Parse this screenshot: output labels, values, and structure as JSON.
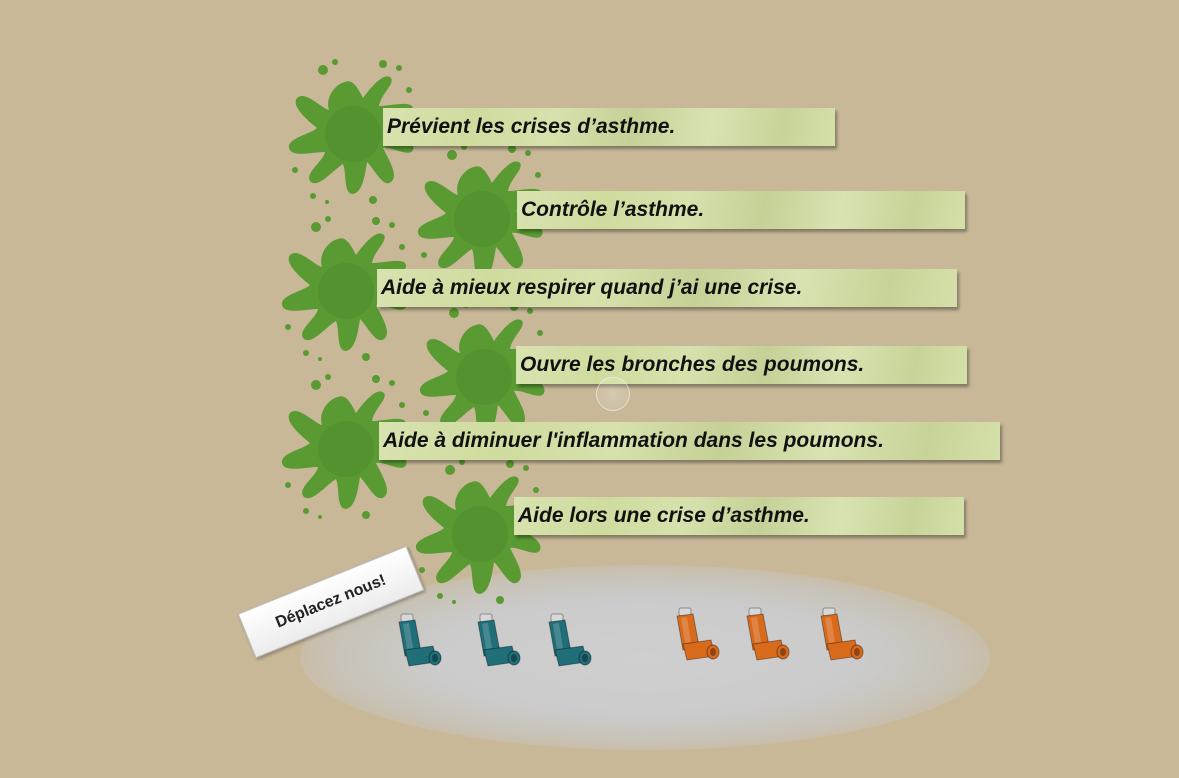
{
  "statements": [
    {
      "text": "Prévient les crises d’asthme."
    },
    {
      "text": "Contrôle l’asthme."
    },
    {
      "text": "Aide à mieux respirer quand j’ai une crise."
    },
    {
      "text": "Ouvre les bronches des poumons."
    },
    {
      "text": "Aide à diminuer l'inflammation dans les poumons."
    },
    {
      "text": "Aide lors une crise d’asthme."
    }
  ],
  "hint": {
    "label": "Déplacez nous!"
  },
  "inhalers": [
    {
      "color": "#1f6e78",
      "icon": "inhaler-icon"
    },
    {
      "color": "#1f6e78",
      "icon": "inhaler-icon"
    },
    {
      "color": "#1f6e78",
      "icon": "inhaler-icon"
    },
    {
      "color": "#d86a1c",
      "icon": "inhaler-icon"
    },
    {
      "color": "#d86a1c",
      "icon": "inhaler-icon"
    },
    {
      "color": "#d86a1c",
      "icon": "inhaler-icon"
    }
  ],
  "colors": {
    "background": "#c8b898",
    "splat": "#5a9a32",
    "strip": "#cfdc9e"
  }
}
